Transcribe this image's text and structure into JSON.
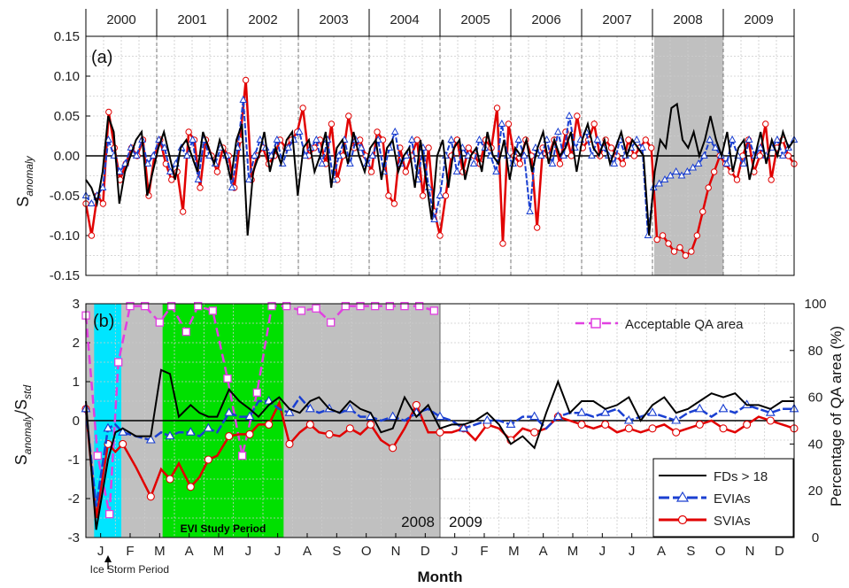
{
  "chart_data": [
    {
      "type": "line",
      "panel": "(a)",
      "years": [
        "2000",
        "2001",
        "2002",
        "2003",
        "2004",
        "2005",
        "2006",
        "2007",
        "2008",
        "2009"
      ],
      "ylabel": "S",
      "ylabel_sub": "anomaly",
      "ylim": [
        -0.15,
        0.15
      ],
      "yticks": [
        "0.15",
        "0.10",
        "0.05",
        "0.00",
        "-0.05",
        "-0.10",
        "-0.15"
      ],
      "shaded_period": [
        2008,
        2009
      ],
      "series": [
        {
          "key": "fd",
          "color": "#000000",
          "values": [
            -0.03,
            -0.04,
            -0.06,
            -0.02,
            0.05,
            0.03,
            -0.06,
            -0.02,
            0.0,
            0.02,
            0.03,
            -0.05,
            -0.02,
            0.01,
            0.03,
            0.0,
            -0.03,
            0.01,
            0.02,
            0.0,
            -0.02,
            0.03,
            0.01,
            -0.01,
            0.02,
            0.0,
            -0.03,
            0.02,
            0.04,
            -0.1,
            -0.02,
            0.0,
            0.03,
            -0.02,
            0.01,
            -0.01,
            0.02,
            0.03,
            -0.05,
            0.01,
            0.02,
            -0.02,
            0.0,
            0.03,
            -0.04,
            0.01,
            0.02,
            -0.01,
            0.03,
            0.0,
            -0.02,
            0.01,
            0.02,
            -0.03,
            0.01,
            0.02,
            -0.02,
            0.0,
            0.01,
            -0.04,
            0.02,
            -0.03,
            -0.08,
            0.0,
            0.02,
            -0.04,
            0.01,
            0.02,
            -0.03,
            0.0,
            0.01,
            -0.02,
            0.03,
            0.0,
            -0.01,
            0.02,
            -0.03,
            0.01,
            0.0,
            0.02,
            -0.02,
            0.01,
            0.03,
            -0.01,
            0.02,
            0.0,
            0.01,
            0.03,
            -0.02,
            0.02,
            0.04,
            0.01,
            0.0,
            0.02,
            -0.01,
            0.01,
            0.03,
            0.0,
            0.02,
            0.01,
            0.0,
            -0.1,
            -0.02,
            0.02,
            0.01,
            0.06,
            0.065,
            0.02,
            0.01,
            0.03,
            0.0,
            0.02,
            0.05,
            0.02,
            0.0,
            0.03,
            -0.02,
            0.01,
            0.02,
            -0.03,
            0.0,
            0.03,
            -0.01,
            0.02,
            0.0,
            0.03,
            0.01,
            0.02
          ]
        },
        {
          "key": "evi",
          "color": "#1a3fd1",
          "values": [
            -0.05,
            -0.06,
            -0.05,
            -0.04,
            0.02,
            0.0,
            -0.02,
            -0.01,
            0.01,
            0.0,
            0.02,
            -0.01,
            0.0,
            0.02,
            0.01,
            -0.02,
            -0.01,
            0.01,
            0.0,
            0.02,
            -0.03,
            0.02,
            0.0,
            -0.01,
            0.01,
            0.0,
            -0.04,
            0.01,
            0.07,
            -0.03,
            0.0,
            0.02,
            0.01,
            0.0,
            0.02,
            -0.01,
            0.01,
            0.02,
            0.03,
            0.0,
            0.01,
            0.02,
            -0.01,
            0.02,
            -0.03,
            0.0,
            0.02,
            -0.01,
            0.02,
            0.01,
            -0.01,
            0.0,
            0.02,
            -0.02,
            0.01,
            0.03,
            -0.01,
            0.0,
            0.02,
            -0.03,
            0.01,
            -0.04,
            -0.08,
            -0.05,
            0.0,
            0.02,
            -0.02,
            0.01,
            0.0,
            -0.01,
            0.02,
            0.01,
            0.0,
            -0.02,
            0.04,
            0.0,
            -0.01,
            0.02,
            0.0,
            -0.07,
            0.01,
            0.0,
            0.02,
            -0.01,
            0.03,
            0.0,
            0.05,
            0.01,
            0.02,
            0.03,
            0.0,
            0.02,
            0.01,
            0.0,
            -0.01,
            0.02,
            0.0,
            0.01,
            0.02,
            0.01,
            -0.1,
            -0.04,
            -0.035,
            -0.03,
            -0.025,
            -0.02,
            -0.025,
            -0.02,
            -0.015,
            -0.01,
            0.0,
            0.02,
            0.01,
            0.0,
            -0.01,
            0.02,
            0.0,
            -0.01,
            0.02,
            0.0,
            0.01,
            0.0,
            0.01,
            0.02,
            0.0,
            0.01,
            0.02
          ]
        },
        {
          "key": "svi",
          "color": "#e10000",
          "values": [
            -0.06,
            -0.1,
            -0.05,
            -0.06,
            0.055,
            0.01,
            -0.03,
            -0.01,
            0.01,
            0.0,
            0.02,
            -0.05,
            0.0,
            0.02,
            -0.01,
            -0.03,
            -0.02,
            -0.07,
            0.03,
            0.02,
            -0.04,
            0.02,
            0.0,
            -0.02,
            0.01,
            0.0,
            -0.04,
            0.02,
            0.095,
            -0.03,
            0.0,
            0.01,
            -0.01,
            0.0,
            0.02,
            0.01,
            0.02,
            0.03,
            0.06,
            0.0,
            0.01,
            0.02,
            -0.01,
            0.04,
            -0.03,
            0.0,
            0.05,
            0.01,
            0.02,
            0.0,
            -0.02,
            0.03,
            0.02,
            -0.05,
            -0.06,
            0.01,
            -0.02,
            0.0,
            0.02,
            -0.05,
            0.01,
            -0.07,
            -0.1,
            -0.05,
            0.0,
            0.02,
            -0.02,
            0.01,
            0.0,
            -0.01,
            0.02,
            0.01,
            0.06,
            -0.11,
            0.04,
            0.0,
            -0.01,
            0.02,
            0.0,
            -0.09,
            0.01,
            0.0,
            0.02,
            -0.01,
            0.03,
            0.0,
            0.05,
            0.01,
            0.02,
            0.04,
            0.0,
            0.02,
            0.01,
            0.0,
            -0.01,
            0.02,
            0.0,
            0.01,
            0.02,
            0.01,
            -0.105,
            -0.1,
            -0.11,
            -0.12,
            -0.115,
            -0.125,
            -0.12,
            -0.1,
            -0.07,
            -0.04,
            -0.02,
            0.0,
            -0.01,
            -0.02,
            -0.03,
            0.0,
            0.02,
            -0.02,
            0.0,
            0.04,
            -0.03,
            0.01,
            0.02,
            0.0,
            -0.01
          ]
        }
      ]
    },
    {
      "type": "line",
      "panel": "(b)",
      "months": [
        "J",
        "F",
        "M",
        "A",
        "M",
        "J",
        "J",
        "A",
        "S",
        "O",
        "N",
        "D",
        "J",
        "F",
        "M",
        "A",
        "M",
        "J",
        "J",
        "A",
        "S",
        "O",
        "N",
        "D"
      ],
      "xlabel": "Month",
      "ylabel": "S",
      "ylabel_sub1": "anomaly",
      "ylabel_mid": "/S",
      "ylabel_sub2": "std",
      "ylim": [
        -3,
        3
      ],
      "yticks": [
        "3",
        "2",
        "1",
        "0",
        "-1",
        "-2",
        "-3"
      ],
      "y2label": "Percentage of QA area (%)",
      "y2lim": [
        0,
        100
      ],
      "y2ticks": [
        "100",
        "80",
        "60",
        "40",
        "20",
        "0"
      ],
      "study_label": "EVI Study Period",
      "ice_label": "Ice Storm Period",
      "year_label_left": "2008",
      "year_label_right": "2009",
      "legend": [
        "FDs > 18",
        "EVIAs",
        "SVIAs",
        "Acceptable QA area"
      ],
      "x": [
        0,
        0.35,
        0.75,
        1.0,
        1.25,
        1.7,
        2.2,
        2.55,
        2.85,
        3.15,
        3.55,
        3.85,
        4.15,
        4.45,
        4.85,
        5.2,
        5.55,
        5.85,
        6.2,
        6.55,
        6.9,
        7.25,
        7.6,
        7.9,
        8.25,
        8.6,
        8.95,
        9.3,
        9.65,
        10.0,
        10.4,
        10.8,
        11.2,
        11.6,
        12.0,
        12.4,
        12.8,
        13.2,
        13.6,
        14.0,
        14.4,
        14.8,
        15.2,
        15.6,
        16.0,
        16.4,
        16.8,
        17.2,
        17.6,
        18.0,
        18.4,
        18.8,
        19.2,
        19.6,
        20.0,
        20.4,
        20.8,
        21.2,
        21.6,
        22.0,
        22.4,
        22.8,
        23.2,
        23.6,
        24.0
      ],
      "series": [
        {
          "key": "fd",
          "values": [
            0.5,
            -2.8,
            -1.0,
            -0.3,
            -0.2,
            -0.4,
            -0.4,
            1.3,
            1.2,
            0.1,
            0.4,
            0.2,
            0.1,
            0.1,
            0.8,
            0.5,
            0.3,
            0.1,
            0.4,
            0.6,
            0.3,
            0.2,
            0.5,
            0.6,
            0.3,
            0.2,
            0.5,
            0.3,
            0.2,
            -0.3,
            -0.2,
            0.6,
            0.1,
            0.4,
            -0.2,
            -0.1,
            -0.1,
            0.0,
            0.2,
            -0.1,
            -0.6,
            -0.4,
            -0.7,
            0.2,
            1.0,
            0.2,
            0.5,
            0.5,
            0.3,
            0.4,
            0.6,
            0.0,
            0.4,
            0.6,
            0.2,
            0.3,
            0.5,
            0.7,
            0.6,
            0.7,
            0.4,
            0.4,
            0.3,
            0.5,
            0.5
          ]
        },
        {
          "key": "evi",
          "values": [
            0.3,
            -2.2,
            -0.2,
            -0.1,
            -0.3,
            -0.4,
            -0.5,
            -0.3,
            -0.4,
            -0.3,
            -0.3,
            -0.4,
            -0.2,
            -0.3,
            0.2,
            0.1,
            0.1,
            0.5,
            0.5,
            0.3,
            0.2,
            0.6,
            0.3,
            0.2,
            0.3,
            0.2,
            0.3,
            0.1,
            0.1,
            0.0,
            0.1,
            0.0,
            0.2,
            0.3,
            0.1,
            0.0,
            -0.2,
            -0.1,
            0.0,
            0.0,
            -0.1,
            0.1,
            0.1,
            -0.2,
            0.1,
            0.2,
            0.2,
            0.1,
            0.2,
            0.3,
            0.0,
            0.1,
            0.2,
            0.1,
            0.0,
            0.2,
            0.3,
            0.1,
            0.3,
            0.2,
            0.4,
            0.3,
            0.2,
            0.3,
            0.3
          ]
        },
        {
          "key": "svi",
          "values": [
            0.3,
            -2.5,
            -0.6,
            -0.8,
            -0.6,
            -1.2,
            -1.95,
            -1.25,
            -1.5,
            -1.1,
            -1.7,
            -1.45,
            -1.0,
            -0.9,
            -0.4,
            -0.35,
            -0.35,
            -0.1,
            -0.1,
            0.45,
            -0.6,
            -0.3,
            -0.1,
            -0.3,
            -0.35,
            -0.4,
            -0.2,
            -0.35,
            -0.1,
            -0.5,
            -0.7,
            -0.2,
            0.4,
            -0.3,
            -0.3,
            -0.3,
            -0.2,
            -0.5,
            -0.1,
            -0.2,
            -0.5,
            -0.2,
            -0.3,
            -0.2,
            0.1,
            0.0,
            -0.1,
            -0.2,
            -0.1,
            -0.3,
            -0.2,
            -0.3,
            -0.2,
            -0.1,
            -0.3,
            -0.2,
            -0.1,
            0.0,
            -0.2,
            -0.3,
            -0.1,
            0.1,
            0.0,
            -0.1,
            -0.2
          ]
        }
      ],
      "qa_series": {
        "x": [
          0,
          0.4,
          0.8,
          1.1,
          1.5,
          2.0,
          2.5,
          2.9,
          3.4,
          3.8,
          4.3,
          4.8,
          5.3,
          5.8,
          6.3,
          6.8,
          7.3,
          7.8,
          8.3,
          8.8,
          9.3,
          9.8,
          10.3,
          10.8,
          11.3,
          11.8
        ],
        "values": [
          95,
          35,
          10,
          75,
          99,
          99,
          92,
          99,
          88,
          99,
          97,
          68,
          35,
          62,
          99,
          99,
          97,
          98,
          92,
          99,
          99,
          99,
          99,
          99,
          99,
          97
        ]
      }
    }
  ]
}
